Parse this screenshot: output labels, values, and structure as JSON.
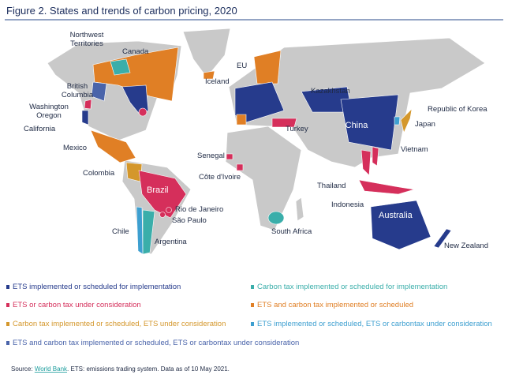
{
  "title": "Figure 2. States and trends of carbon pricing, 2020",
  "labels": [
    {
      "lines": [
        "Northwest",
        "Territories"
      ]
    },
    {
      "lines": [
        "Canada"
      ]
    },
    {
      "lines": [
        "British",
        "Columbia"
      ]
    },
    {
      "lines": [
        "Washington",
        "Oregon"
      ]
    },
    {
      "lines": [
        "California"
      ]
    },
    {
      "lines": [
        "Mexico"
      ]
    },
    {
      "lines": [
        "Colombia"
      ]
    },
    {
      "lines": [
        "Brazil"
      ]
    },
    {
      "lines": [
        "Rio de Janeiro"
      ]
    },
    {
      "lines": [
        "São Paulo"
      ]
    },
    {
      "lines": [
        "Chile"
      ]
    },
    {
      "lines": [
        "Argentina"
      ]
    },
    {
      "lines": [
        "Iceland"
      ]
    },
    {
      "lines": [
        "EU"
      ]
    },
    {
      "lines": [
        "Senegal"
      ]
    },
    {
      "lines": [
        "Côte d'Ivoire"
      ]
    },
    {
      "lines": [
        "South Africa"
      ]
    },
    {
      "lines": [
        "Turkey"
      ]
    },
    {
      "lines": [
        "Kazakhstan"
      ]
    },
    {
      "lines": [
        "China"
      ]
    },
    {
      "lines": [
        "Republic of Korea"
      ]
    },
    {
      "lines": [
        "Japan"
      ]
    },
    {
      "lines": [
        "Vietnam"
      ]
    },
    {
      "lines": [
        "Thailand"
      ]
    },
    {
      "lines": [
        "Indonesia"
      ]
    },
    {
      "lines": [
        "Australia"
      ]
    },
    {
      "lines": [
        "New Zealand"
      ]
    }
  ],
  "legend": [
    {
      "text": "ETS implemented or scheduled for implementation",
      "color": "#263b8c"
    },
    {
      "text": "Carbon tax implemented or scheduled for implementation",
      "color": "#3aaeaa"
    },
    {
      "text": "ETS or carbon tax under consideration",
      "color": "#d52f5b"
    },
    {
      "text": "ETS and carbon tax implemented or scheduled",
      "color": "#e07f25"
    },
    {
      "text": "Carbon tax implemented or scheduled, ETS under consideration",
      "color": "#d4972c"
    },
    {
      "text": "ETS implemented or scheduled, ETS or carbontax under consideration",
      "color": "#3d9fd0"
    },
    {
      "text": "ETS and carbon tax implemented or scheduled, ETS or carbontax under consideration",
      "color": "#4a64aa"
    }
  ],
  "source": {
    "prefix": "Source:",
    "link": "World Bank",
    "rest": ". ETS: emissions trading system. Data as of 10 May 2021."
  }
}
